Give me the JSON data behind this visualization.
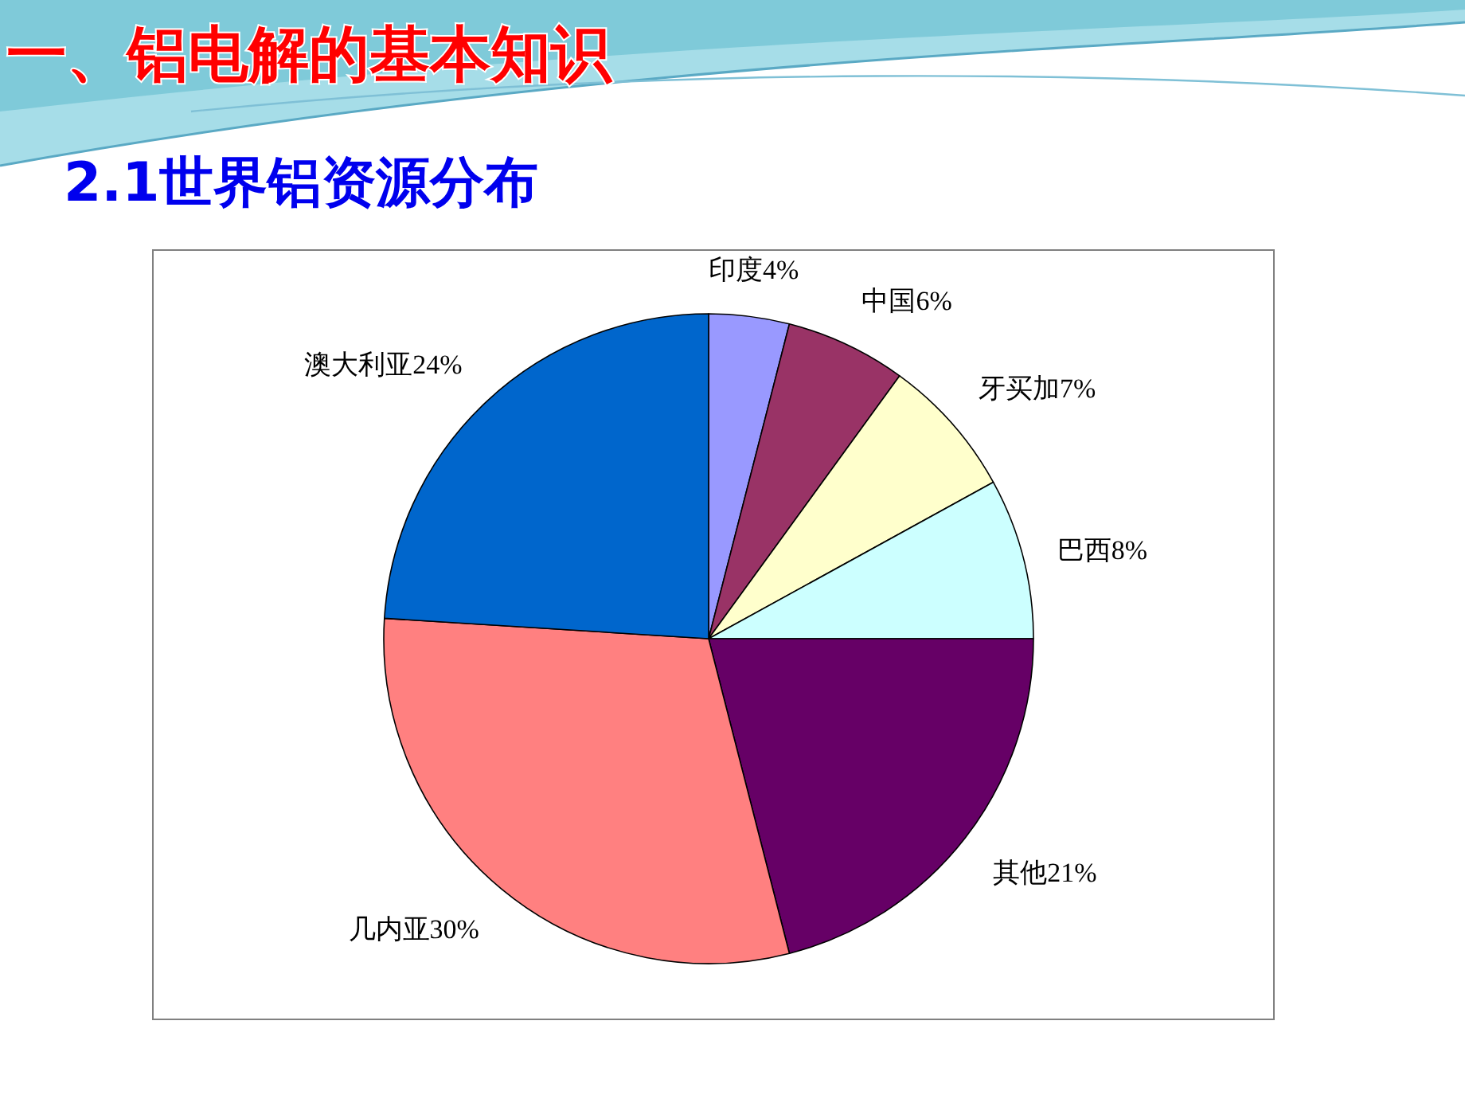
{
  "chart_data": {
    "type": "pie",
    "title": "一、铝电解的基本知识",
    "subtitle": "2.1世界铝资源分布",
    "categories": [
      "印度",
      "中国",
      "牙买加",
      "巴西",
      "其他",
      "几内亚",
      "澳大利亚"
    ],
    "values": [
      4,
      6,
      7,
      8,
      21,
      30,
      24
    ],
    "value_labels": [
      "4%",
      "6%",
      "7%",
      "8%",
      "21%",
      "30%",
      "24%"
    ],
    "colors": [
      "#9999ff",
      "#993366",
      "#ffffcc",
      "#ccffff",
      "#660066",
      "#ff8080",
      "#0066cc"
    ]
  }
}
